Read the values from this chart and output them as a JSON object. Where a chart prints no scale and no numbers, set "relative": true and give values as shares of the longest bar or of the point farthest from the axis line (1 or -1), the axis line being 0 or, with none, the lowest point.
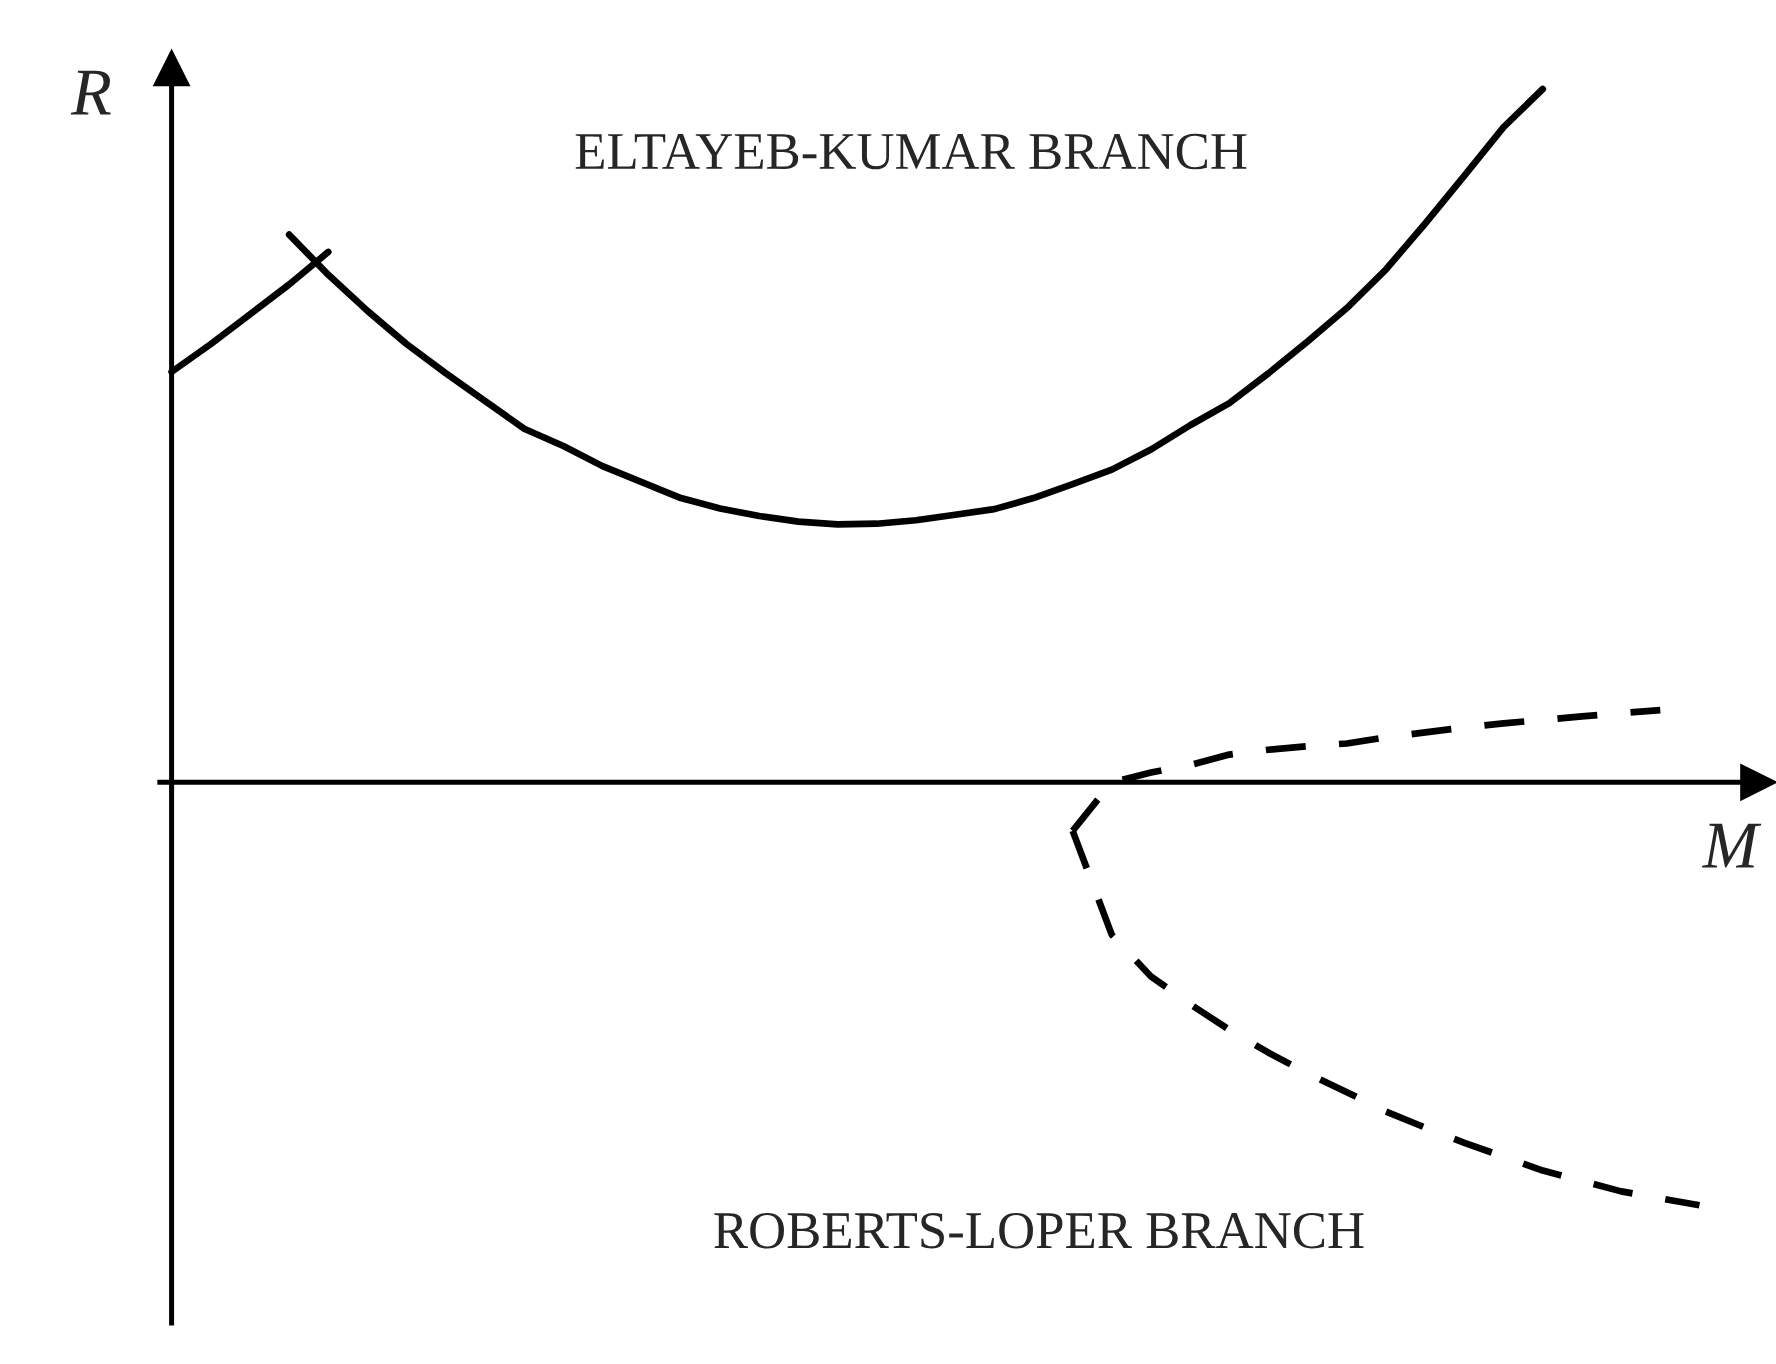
{
  "chart_data": {
    "type": "line",
    "relative": true,
    "xlabel": "M",
    "ylabel": "R",
    "categories": [
      null,
      null,
      null,
      null,
      null,
      null,
      null,
      null,
      null,
      null,
      null,
      null,
      null,
      null,
      null,
      null,
      null,
      null,
      null,
      null,
      null,
      null,
      null,
      null,
      null,
      null,
      null,
      null,
      null,
      null,
      null,
      null,
      null,
      null,
      null,
      null,
      null,
      null,
      null,
      null,
      null
    ],
    "series": [
      {
        "color": "#000000",
        "line_style": "solid",
        "values": [
          0.592,
          0.632,
          0.675,
          0.718,
          0.765,
          null,
          null,
          null,
          null,
          null,
          null,
          null,
          null,
          null,
          null,
          null,
          null,
          null,
          null,
          null,
          null,
          null,
          null,
          null,
          null,
          null,
          null,
          null,
          null,
          null,
          null,
          null,
          null,
          null,
          null,
          null,
          null,
          null,
          null,
          null,
          null
        ]
      },
      {
        "color": "#000000",
        "line_style": "solid",
        "values": [
          null,
          null,
          null,
          0.79,
          0.732,
          0.68,
          0.632,
          0.59,
          0.55,
          0.51,
          0.485,
          0.456,
          0.433,
          0.41,
          0.395,
          0.384,
          0.376,
          0.372,
          0.373,
          0.378,
          0.386,
          0.394,
          0.41,
          0.43,
          0.451,
          0.48,
          0.515,
          0.547,
          0.59,
          0.636,
          0.684,
          0.74,
          0.806,
          0.875,
          0.945,
          1.0,
          null,
          null,
          null,
          null,
          null
        ]
      },
      {
        "color": "#000000",
        "line_style": "dashed",
        "values": [
          null,
          null,
          null,
          null,
          null,
          null,
          null,
          null,
          null,
          null,
          null,
          null,
          null,
          null,
          null,
          null,
          null,
          null,
          null,
          null,
          null,
          null,
          null,
          -0.07,
          0,
          0.014,
          0.025,
          0.04,
          0.047,
          0.052,
          0.056,
          0.065,
          0.072,
          0.079,
          0.085,
          0.09,
          0.095,
          0.1,
          0.104,
          null,
          null
        ]
      },
      {
        "color": "#000000",
        "line_style": "dashed",
        "values": [
          null,
          null,
          null,
          null,
          null,
          null,
          null,
          null,
          null,
          null,
          null,
          null,
          null,
          null,
          null,
          null,
          null,
          null,
          null,
          null,
          null,
          null,
          null,
          -0.07,
          -0.22,
          -0.28,
          -0.32,
          -0.357,
          -0.39,
          -0.42,
          -0.447,
          -0.475,
          -0.498,
          -0.52,
          -0.54,
          -0.56,
          -0.575,
          -0.59,
          -0.6,
          -0.61,
          null
        ]
      }
    ],
    "annotations": [
      "ELTAYEB-KUMAR BRANCH",
      "ROBERTS-LOPER BRANCH"
    ],
    "legend": false,
    "marker": "none"
  }
}
